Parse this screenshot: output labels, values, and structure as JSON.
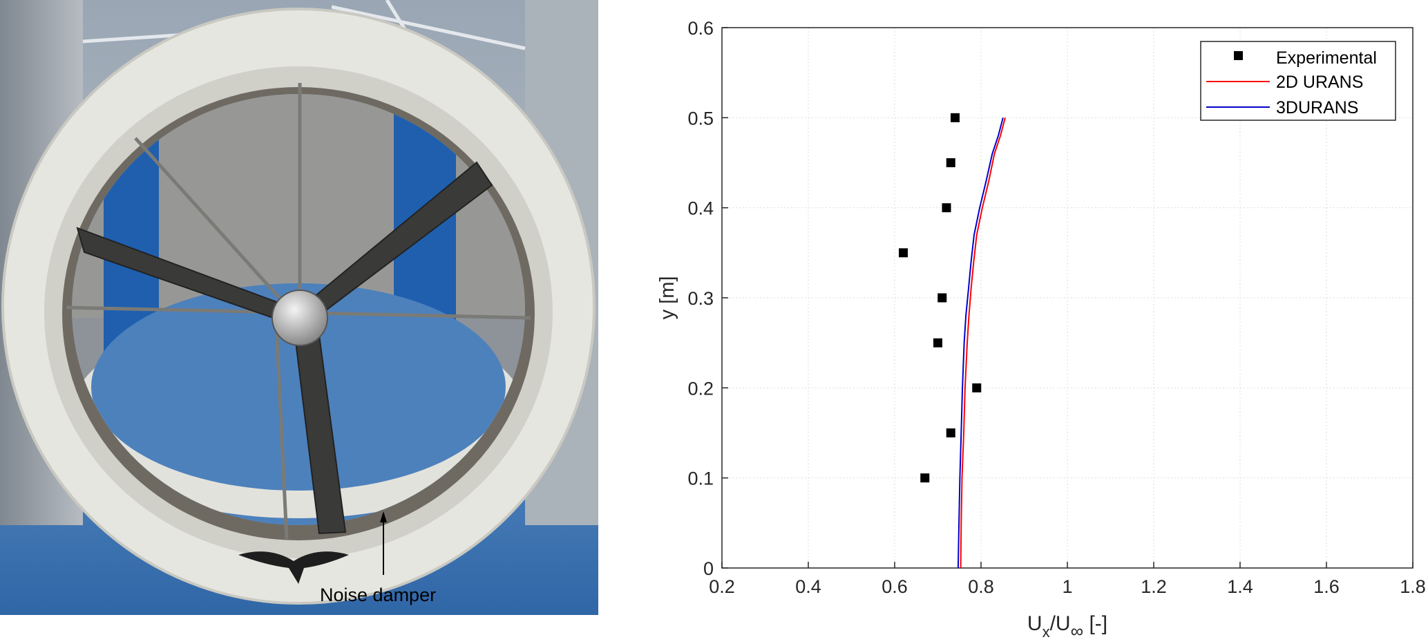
{
  "figure": {
    "photo_annotation": "Noise damper"
  },
  "colors": {
    "red_series": "#ff0000",
    "blue_series": "#0000cc",
    "marker": "#000000",
    "grid": "#dddddd",
    "tunnel_blue": "#1f5fae",
    "floor_blue": "#3f78b6",
    "duct_white": "#e8e8e2"
  },
  "chart_data": {
    "type": "line",
    "xlabel": "U",
    "xlabel_sub1": "x",
    "xlabel_mid": "/U",
    "xlabel_sub2": "∞",
    "xlabel_tail": " [-]",
    "ylabel": "y [m]",
    "xlim": [
      0.2,
      1.8
    ],
    "ylim": [
      0,
      0.6
    ],
    "xticks": [
      "0.2",
      "0.4",
      "0.6",
      "0.8",
      "1",
      "1.2",
      "1.4",
      "1.6",
      "1.8"
    ],
    "yticks": [
      "0",
      "0.1",
      "0.2",
      "0.3",
      "0.4",
      "0.5",
      "0.6"
    ],
    "grid": true,
    "legend_position": "top-right",
    "series": [
      {
        "name": "Experimental",
        "kind": "marker",
        "x": [
          0.67,
          0.73,
          0.79,
          0.7,
          0.71,
          0.62,
          0.72,
          0.73,
          0.74
        ],
        "y": [
          0.1,
          0.15,
          0.2,
          0.25,
          0.3,
          0.35,
          0.4,
          0.45,
          0.5
        ]
      },
      {
        "name": "2D URANS",
        "kind": "line",
        "x": [
          0.753,
          0.754,
          0.756,
          0.76,
          0.763,
          0.768,
          0.772,
          0.777,
          0.783,
          0.79,
          0.803,
          0.818,
          0.831,
          0.845,
          0.856
        ],
        "y": [
          0.0,
          0.05,
          0.1,
          0.15,
          0.2,
          0.25,
          0.28,
          0.31,
          0.34,
          0.37,
          0.4,
          0.43,
          0.46,
          0.48,
          0.5
        ]
      },
      {
        "name": "3DURANS",
        "kind": "line",
        "x": [
          0.747,
          0.749,
          0.751,
          0.754,
          0.757,
          0.761,
          0.765,
          0.771,
          0.777,
          0.784,
          0.797,
          0.812,
          0.826,
          0.84,
          0.851
        ],
        "y": [
          0.0,
          0.05,
          0.1,
          0.15,
          0.2,
          0.25,
          0.28,
          0.31,
          0.34,
          0.37,
          0.4,
          0.43,
          0.46,
          0.48,
          0.5
        ]
      }
    ]
  }
}
